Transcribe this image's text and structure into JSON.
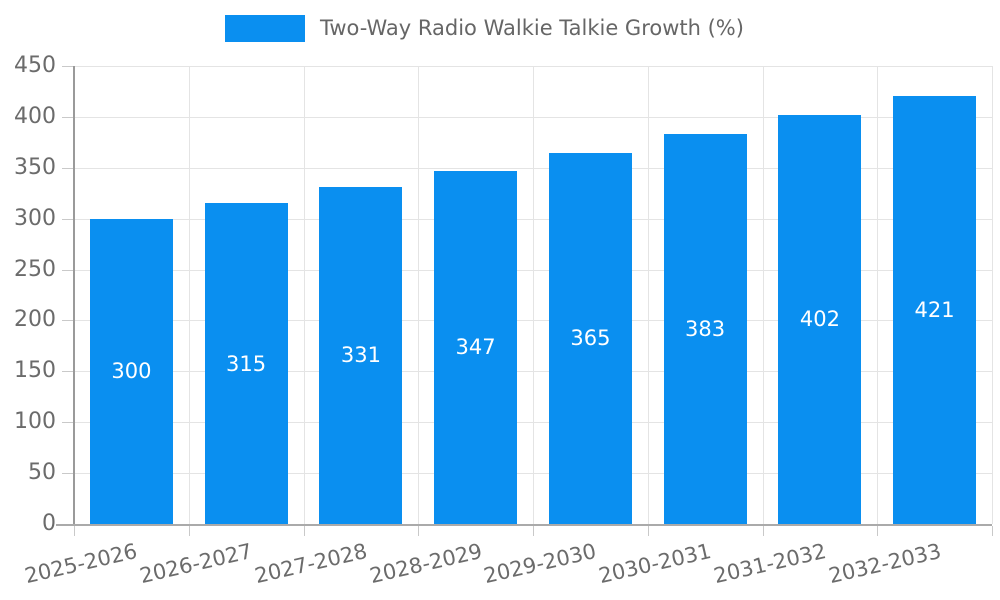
{
  "legend": {
    "position": "top"
  },
  "chart_data": {
    "type": "bar",
    "title": "",
    "series_name": "Two-Way Radio Walkie Talkie Growth (%)",
    "categories": [
      "2025-2026",
      "2026-2027",
      "2027-2028",
      "2028-2029",
      "2029-2030",
      "2030-2031",
      "2031-2032",
      "2032-2033"
    ],
    "values": [
      300,
      315,
      331,
      347,
      365,
      383,
      402,
      421
    ],
    "value_labels": [
      "300",
      "315",
      "331",
      "347",
      "365",
      "383",
      "402",
      "421"
    ],
    "xlabel": "",
    "ylabel": "",
    "ylim": [
      0,
      450
    ],
    "ytick_step": 50,
    "yticks": [
      "0",
      "50",
      "100",
      "150",
      "200",
      "250",
      "300",
      "350",
      "400",
      "450"
    ],
    "grid": true,
    "legend_position": "top",
    "bar_labels_inside": true,
    "x_label_rotation_deg": -13,
    "colors": {
      "bar": "#0a8ff0",
      "bar_label": "#ffffff",
      "axis_text": "#6b6b6b",
      "legend_text": "#666666",
      "y_axis_line": "#9a9a9a",
      "x_axis_line": "#aaaaaa",
      "gridline": "#e4e4e4",
      "tick": "#c9c9c9",
      "background": "#ffffff"
    }
  }
}
